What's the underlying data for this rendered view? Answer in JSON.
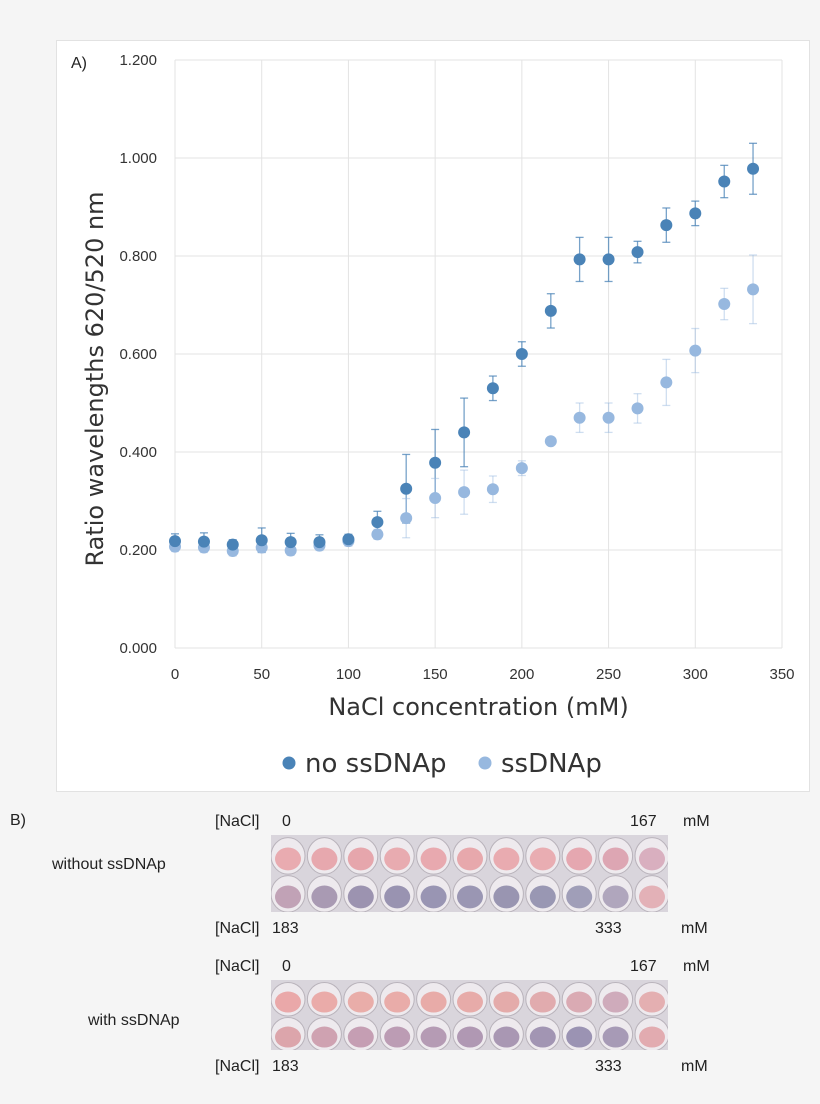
{
  "panel_a_label": "A)",
  "panel_b_label": "B)",
  "chart_data": {
    "type": "scatter",
    "title": "",
    "xlabel": "NaCl concentration (mM)",
    "ylabel": "Ratio wavelengths 620/520 nm",
    "xlim": [
      0,
      350
    ],
    "ylim": [
      0,
      1.2
    ],
    "xticks": [
      "0",
      "50",
      "100",
      "150",
      "200",
      "250",
      "300",
      "350"
    ],
    "yticks": [
      "0.000",
      "0.200",
      "0.400",
      "0.600",
      "0.800",
      "1.000",
      "1.200"
    ],
    "grid": true,
    "legend_position": "bottom",
    "x": [
      0,
      16.7,
      33.3,
      50,
      66.7,
      83.3,
      100,
      116.7,
      133.3,
      150,
      166.7,
      183.3,
      200,
      216.7,
      233.3,
      250,
      266.7,
      283.3,
      300,
      316.7,
      333.3
    ],
    "series": [
      {
        "name": "no ssDNAp",
        "color": "#4a83b7",
        "values": [
          0.218,
          0.217,
          0.211,
          0.22,
          0.216,
          0.216,
          0.222,
          0.257,
          0.325,
          0.378,
          0.44,
          0.53,
          0.6,
          0.688,
          0.793,
          0.793,
          0.808,
          0.863,
          0.887,
          0.952,
          0.978
        ],
        "errors": [
          0.015,
          0.018,
          0.01,
          0.025,
          0.018,
          0.015,
          0.01,
          0.022,
          0.07,
          0.068,
          0.07,
          0.025,
          0.025,
          0.035,
          0.045,
          0.045,
          0.022,
          0.035,
          0.025,
          0.033,
          0.052
        ]
      },
      {
        "name": "ssDNAp",
        "color": "#97b8df",
        "values": [
          0.207,
          0.205,
          0.198,
          0.205,
          0.199,
          0.209,
          0.218,
          0.232,
          0.265,
          0.306,
          0.318,
          0.324,
          0.367,
          0.422,
          0.47,
          0.47,
          0.489,
          0.542,
          0.607,
          0.702,
          0.732
        ],
        "errors": [
          0.01,
          0.01,
          0.01,
          0.01,
          0.01,
          0.01,
          0.01,
          0.01,
          0.04,
          0.04,
          0.045,
          0.027,
          0.015,
          0.005,
          0.03,
          0.03,
          0.03,
          0.047,
          0.045,
          0.032,
          0.07
        ]
      }
    ]
  },
  "panel_b": {
    "rows": [
      {
        "label": "without ssDNAp",
        "top": {
          "prefix": "[NaCl]",
          "start": "0",
          "end": "167",
          "unit": "mM"
        },
        "bottom": {
          "prefix": "[NaCl]",
          "start": "183",
          "end": "333",
          "unit": "mM"
        }
      },
      {
        "label": "with ssDNAp",
        "top": {
          "prefix": "[NaCl]",
          "start": "0",
          "end": "167",
          "unit": "mM"
        },
        "bottom": {
          "prefix": "[NaCl]",
          "start": "183",
          "end": "333",
          "unit": "mM"
        }
      }
    ]
  }
}
